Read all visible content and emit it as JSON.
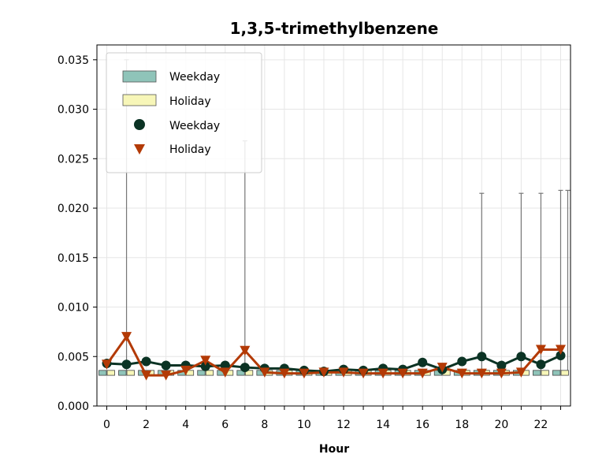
{
  "chart_data": {
    "type": "line",
    "title": "1,3,5-trimethylbenzene",
    "xlabel": "Hour",
    "ylabel": "",
    "xlim": [
      -0.5,
      23.5
    ],
    "ylim": [
      0,
      0.0365
    ],
    "x_ticks": [
      0,
      2,
      4,
      6,
      8,
      10,
      12,
      14,
      16,
      18,
      20,
      22
    ],
    "y_ticks": [
      "0.000",
      "0.005",
      "0.010",
      "0.015",
      "0.020",
      "0.025",
      "0.030",
      "0.035"
    ],
    "grid": true,
    "legend_position": "top-left",
    "legend": {
      "box_weekday": "Weekday",
      "box_holiday": "Holiday",
      "line_weekday": "Weekday",
      "line_holiday": "Holiday"
    },
    "colors": {
      "weekday_line": "#0b3324",
      "holiday_line": "#b33a06",
      "weekday_box": "#8fc4b9",
      "holiday_box": "#f7f6b8",
      "whisker": "#777777",
      "grid": "#e6e6e6"
    },
    "x": [
      0,
      1,
      2,
      3,
      4,
      5,
      6,
      7,
      8,
      9,
      10,
      11,
      12,
      13,
      14,
      15,
      16,
      17,
      18,
      19,
      20,
      21,
      22,
      23
    ],
    "series": [
      {
        "name": "Weekday",
        "marker": "circle",
        "values": [
          0.0043,
          0.0042,
          0.0045,
          0.0041,
          0.0041,
          0.004,
          0.0041,
          0.0039,
          0.0038,
          0.0038,
          0.0036,
          0.0035,
          0.0037,
          0.0036,
          0.0038,
          0.0037,
          0.0044,
          0.0037,
          0.0045,
          0.005,
          0.0041,
          0.005,
          0.0042,
          0.0051
        ]
      },
      {
        "name": "Holiday",
        "marker": "triangle-down",
        "values": [
          0.0042,
          0.007,
          0.0031,
          0.0031,
          0.0036,
          0.0046,
          0.0034,
          0.0056,
          0.0034,
          0.0033,
          0.0033,
          0.0034,
          0.0034,
          0.0033,
          0.0033,
          0.0033,
          0.0033,
          0.0039,
          0.0033,
          0.0033,
          0.0033,
          0.0034,
          0.0057,
          0.0057
        ]
      }
    ],
    "boxes": {
      "weekday": {
        "q1": 0.0031,
        "q3": 0.0036
      },
      "holiday": {
        "q1": 0.0031,
        "q3": 0.0036
      }
    },
    "whiskers": [
      {
        "x": 1,
        "top": 0.035
      },
      {
        "x": 7,
        "top": 0.0268
      },
      {
        "x": 19,
        "top": 0.0215
      },
      {
        "x": 21,
        "top": 0.0215
      },
      {
        "x": 22,
        "top": 0.0215
      },
      {
        "x": 23,
        "top": 0.0218
      },
      {
        "x": 23,
        "top": 0.0218,
        "offset": "right"
      }
    ]
  }
}
